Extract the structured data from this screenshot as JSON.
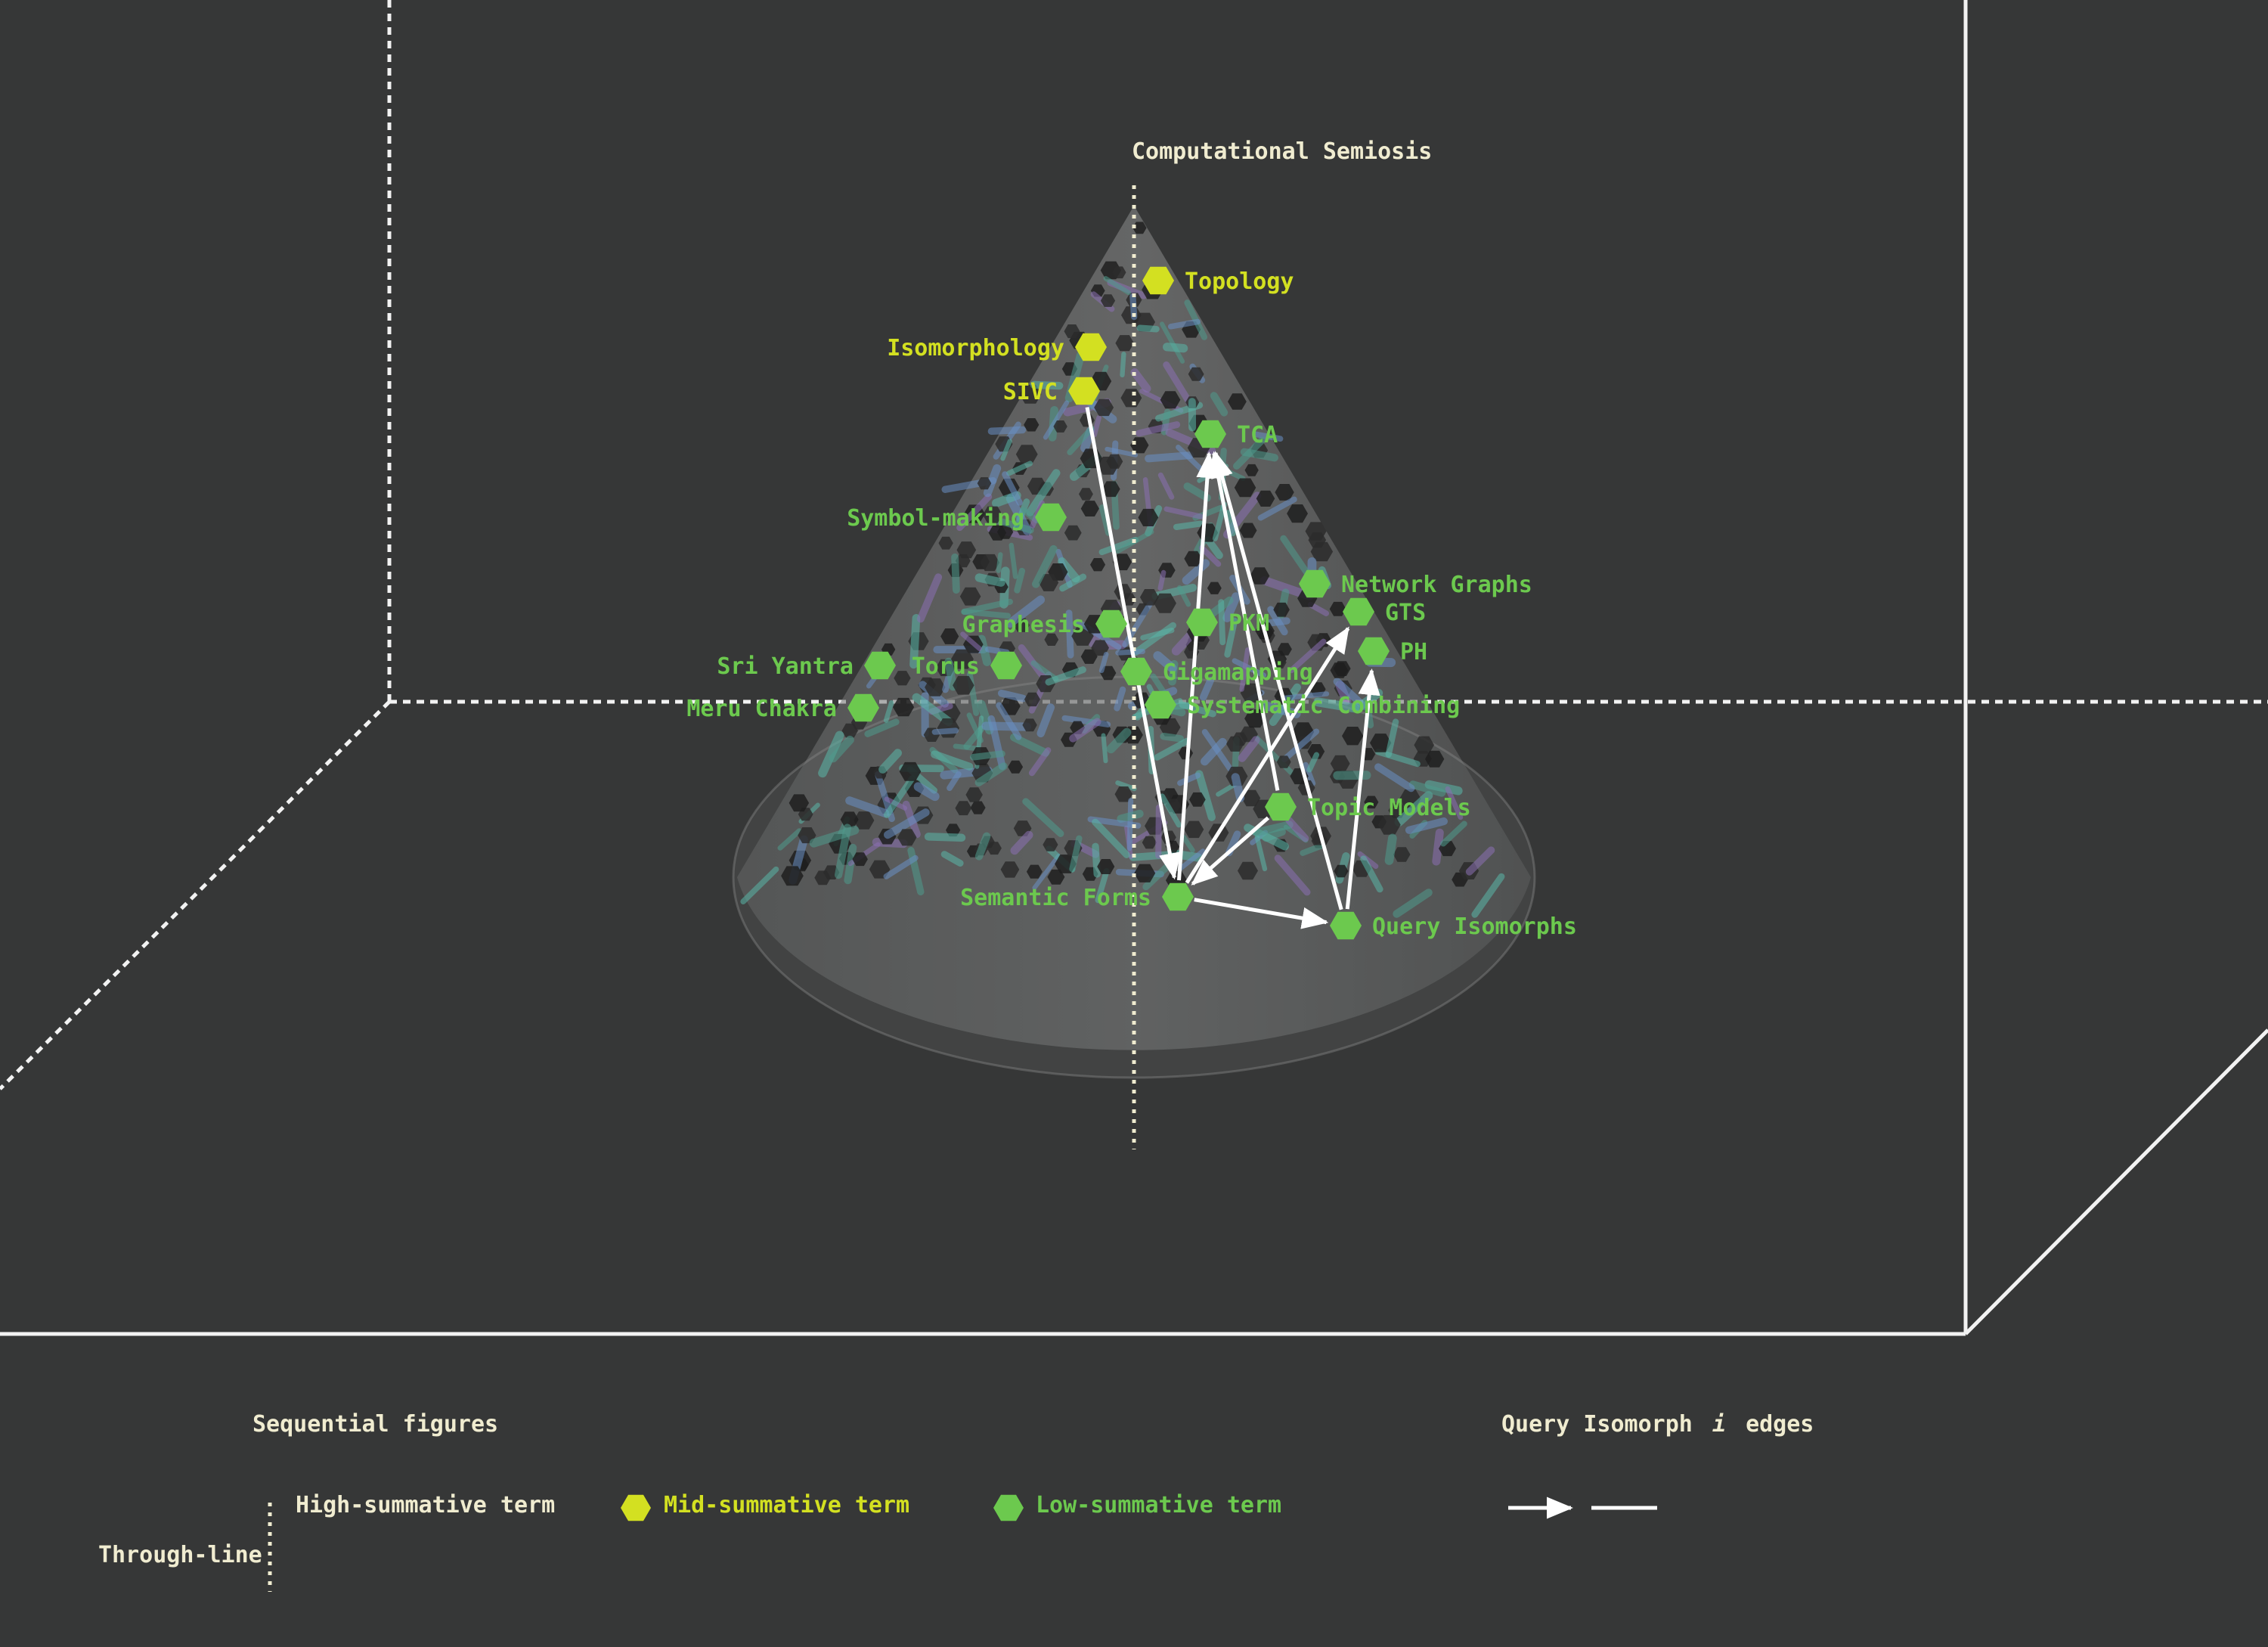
{
  "colors": {
    "background": "#363737",
    "frame": "#f2f2f2",
    "high_summative": "#f0ecd0",
    "mid_summative": "#d3e021",
    "low_summative": "#6cc94e",
    "edge": "#ffffff"
  },
  "apex_label": "Computational Semiosis",
  "nodes": [
    {
      "id": "topology",
      "label": "Topology",
      "level": "mid"
    },
    {
      "id": "isomorphology",
      "label": "Isomorphology",
      "level": "mid"
    },
    {
      "id": "sivc",
      "label": "SIVC",
      "level": "mid"
    },
    {
      "id": "tca",
      "label": "TCA",
      "level": "low"
    },
    {
      "id": "symbol-making",
      "label": "Symbol-making",
      "level": "low"
    },
    {
      "id": "network-graphs",
      "label": "Network Graphs",
      "level": "low"
    },
    {
      "id": "gts",
      "label": "GTS",
      "level": "low"
    },
    {
      "id": "graphesis",
      "label": "Graphesis",
      "level": "low"
    },
    {
      "id": "pkm",
      "label": "PKM",
      "level": "low"
    },
    {
      "id": "ph",
      "label": "PH",
      "level": "low"
    },
    {
      "id": "sri-yantra",
      "label": "Sri Yantra",
      "level": "low"
    },
    {
      "id": "torus",
      "label": "Torus",
      "level": "low"
    },
    {
      "id": "gigamapping",
      "label": "Gigamapping",
      "level": "low"
    },
    {
      "id": "meru-chakra",
      "label": "Meru Chakra",
      "level": "low"
    },
    {
      "id": "systematic-combining",
      "label": "Systematic Combining",
      "level": "low"
    },
    {
      "id": "topic-models",
      "label": "Topic Models",
      "level": "low"
    },
    {
      "id": "semantic-forms",
      "label": "Semantic Forms",
      "level": "low"
    },
    {
      "id": "query-isomorphs",
      "label": "Query Isomorphs",
      "level": "low"
    }
  ],
  "edges": [
    {
      "from": "sivc",
      "to": "semantic-forms"
    },
    {
      "from": "semantic-forms",
      "to": "tca"
    },
    {
      "from": "semantic-forms",
      "to": "gts"
    },
    {
      "from": "semantic-forms",
      "to": "query-isomorphs"
    },
    {
      "from": "topic-models",
      "to": "semantic-forms"
    },
    {
      "from": "topic-models",
      "to": "tca"
    },
    {
      "from": "query-isomorphs",
      "to": "tca"
    },
    {
      "from": "query-isomorphs",
      "to": "ph"
    }
  ],
  "legend": {
    "sequential_title": "Sequential figures",
    "edges_title_pre": "Query Isomorph",
    "edges_title_var": "i",
    "edges_title_post": "edges",
    "high_label": "High-summative term",
    "mid_label": "Mid-summative term",
    "low_label": "Low-summative term",
    "throughline_label": "Through-line"
  }
}
